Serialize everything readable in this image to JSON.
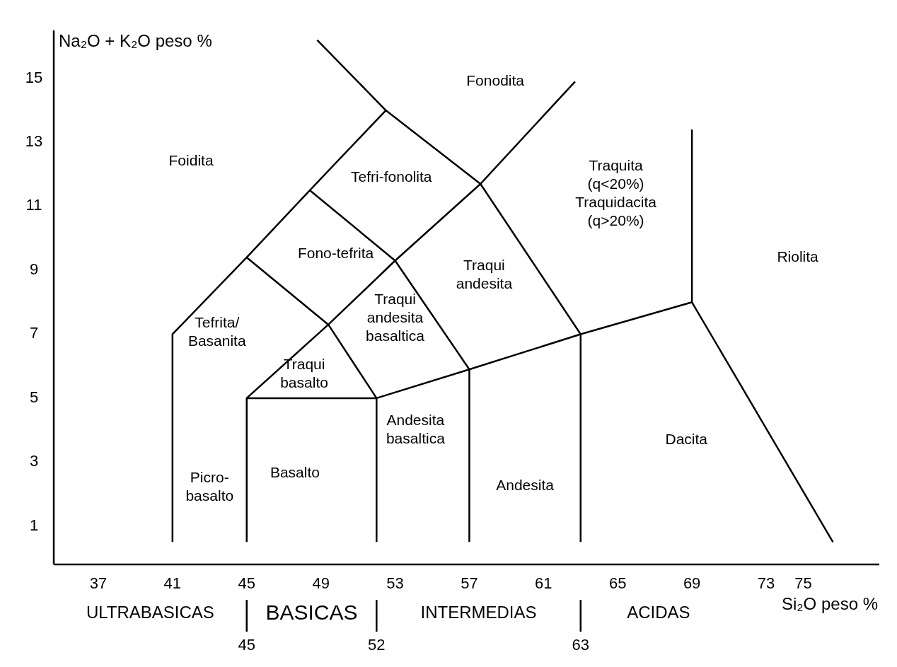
{
  "chart_data": {
    "type": "line",
    "xlabel": "Si₂O peso %",
    "ylabel": "Na₂O + K₂O peso %",
    "line_style": "solid",
    "xlim": [
      34.6,
      79.1
    ],
    "ylim": [
      -0.2,
      16.5
    ],
    "xticks": [
      37,
      41,
      45,
      49,
      53,
      57,
      61,
      65,
      69,
      73,
      75
    ],
    "yticks": [
      1,
      3,
      5,
      7,
      9,
      11,
      13,
      15
    ],
    "x2lim": [
      34.6,
      79.1
    ],
    "x2ticks": [
      45,
      52,
      63
    ],
    "series": [
      {
        "color": "#000000",
        "x": [
          48.8,
          52.5,
          57.6,
          63
        ],
        "values": [
          16.2,
          14,
          11.7,
          7
        ]
      },
      {
        "color": "#000000",
        "x": [
          41,
          41,
          45,
          48.4,
          52.5
        ],
        "values": [
          0.5,
          7,
          9.4,
          11.5,
          14
        ]
      },
      {
        "color": "#000000",
        "x": [
          45,
          49.4,
          52
        ],
        "values": [
          9.4,
          7.3,
          5
        ]
      },
      {
        "color": "#000000",
        "x": [
          48.4,
          53,
          57,
          57
        ],
        "values": [
          11.5,
          9.3,
          5.9,
          0.5
        ]
      },
      {
        "color": "#000000",
        "x": [
          45,
          49.4,
          53,
          57.6,
          62.7
        ],
        "values": [
          5,
          7.3,
          9.3,
          11.7,
          14.9
        ]
      },
      {
        "color": "#000000",
        "x": [
          45,
          45,
          52,
          52
        ],
        "values": [
          0.5,
          5,
          5,
          0.5
        ]
      },
      {
        "color": "#000000",
        "x": [
          52,
          57,
          63,
          69,
          76.6
        ],
        "values": [
          5,
          5.9,
          7,
          8,
          0.5
        ]
      },
      {
        "color": "#000000",
        "x": [
          69,
          69
        ],
        "values": [
          8,
          13.4
        ]
      },
      {
        "color": "#000000",
        "x": [
          63,
          63
        ],
        "values": [
          7,
          0.5
        ]
      }
    ],
    "annotations": [
      "Fonodita",
      "Foidita",
      "Tefri-fonolita",
      "Traquita\n(q<20%)\nTraquidacita\n(q>20%)",
      "Fono-tefrita",
      "Riolita",
      "Traqui\nandesita",
      "Tefrita/\nBasanita",
      "Traqui\nandesita\nbasaltica",
      "Traqui\nbasalto",
      "Andesita\nbasaltica",
      "Dacita",
      "Basalto",
      "Picro-\nbasalto",
      "Andesita",
      "ULTRABASICAS",
      "BASICAS",
      "INTERMEDIAS",
      "ACIDAS"
    ]
  }
}
